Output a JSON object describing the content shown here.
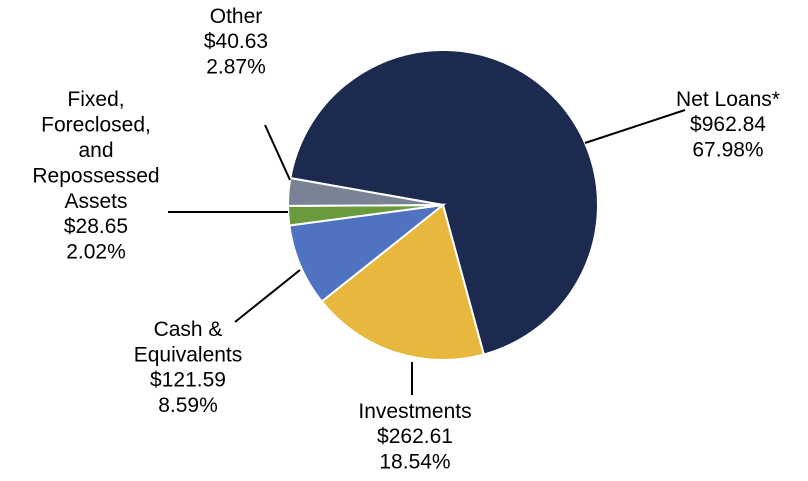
{
  "chart_data": {
    "type": "pie",
    "categories": [
      "Net Loans*",
      "Investments",
      "Cash &\nEquivalents",
      "Fixed,\nForeclosed,\nand\nRepossessed\nAssets",
      "Other"
    ],
    "values": [
      962.84,
      262.61,
      121.59,
      28.65,
      40.63
    ],
    "value_labels": [
      "$962.84",
      "$262.61",
      "$121.59",
      "$28.65",
      "$40.63"
    ],
    "percentages": [
      67.98,
      18.54,
      8.59,
      2.02,
      2.87
    ],
    "percentage_labels": [
      "67.98%",
      "18.54%",
      "8.59%",
      "2.02%",
      "2.87%"
    ],
    "colors": [
      "#1b2a4e",
      "#e8b83e",
      "#4f73c0",
      "#6a9a3c",
      "#7a8296"
    ]
  }
}
